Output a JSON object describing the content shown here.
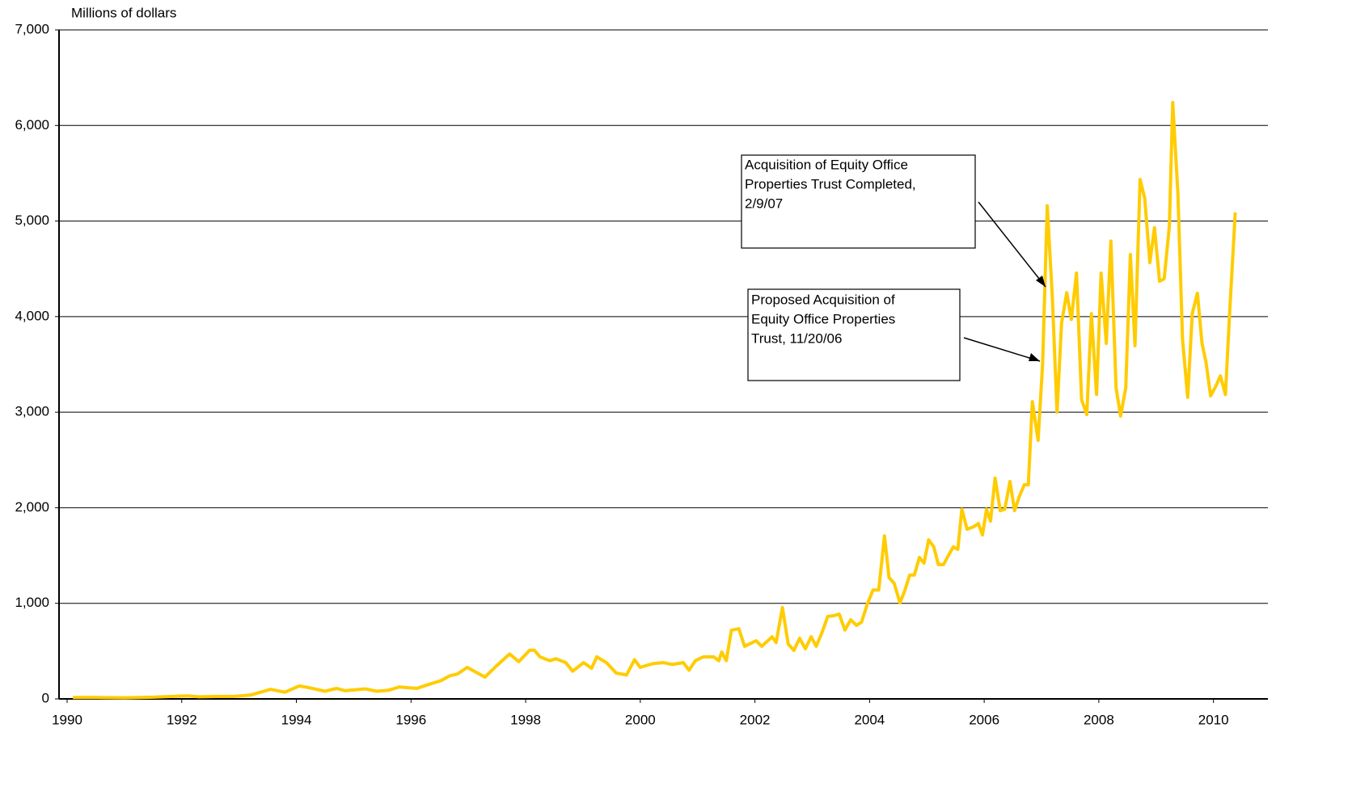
{
  "chart_data": {
    "type": "line",
    "y_axis_label": "Millions of dollars",
    "annotations": [
      {
        "lines": [
          "Acquisition of Equity Office",
          "Properties Trust Completed,",
          "2/9/07"
        ]
      },
      {
        "lines": [
          "Proposed Acquisition of",
          "Equity Office Properties",
          "Trust, 11/20/06"
        ]
      }
    ],
    "color": "#FFCC00",
    "grid": true,
    "xlim": [
      1990,
      2010.95
    ],
    "xticks": [
      1990,
      1992,
      1994,
      1996,
      1998,
      2000,
      2002,
      2004,
      2006,
      2008,
      2010
    ],
    "ylim": [
      0,
      7000
    ],
    "yticks": [
      0,
      {
        "value": 1000,
        "label": "1,000"
      },
      {
        "value": 2000,
        "label": "2,000"
      },
      {
        "value": 3000,
        "label": "3,000"
      },
      {
        "value": 4000,
        "label": "4,000"
      },
      {
        "value": 5000,
        "label": "5,000"
      },
      {
        "value": 6000,
        "label": "6,000"
      },
      {
        "value": 7000,
        "label": "7,000"
      }
    ],
    "x": [
      1990.1,
      1990.5,
      1991,
      1991.5,
      1991.9,
      1992.1,
      1992.3,
      1992.6,
      1992.9,
      1993.2,
      1993.55,
      1993.8,
      1994.05,
      1994.2,
      1994.5,
      1994.7,
      1994.85,
      1995.2,
      1995.4,
      1995.6,
      1995.8,
      1996.1,
      1996.3,
      1996.52,
      1996.67,
      1996.81,
      1996.98,
      1997.29,
      1997.5,
      1997.72,
      1997.88,
      1998.07,
      1998.15,
      1998.25,
      1998.42,
      1998.53,
      1998.7,
      1998.82,
      1999.01,
      1999.15,
      1999.24,
      1999.41,
      1999.58,
      1999.76,
      1999.9,
      2000.0,
      2000.11,
      2000.23,
      2000.4,
      2000.56,
      2000.75,
      2000.85,
      2000.96,
      2001.1,
      2001.28,
      2001.37,
      2001.42,
      2001.5,
      2001.59,
      2001.72,
      2001.82,
      2002.02,
      2002.12,
      2002.3,
      2002.37,
      2002.48,
      2002.58,
      2002.68,
      2002.78,
      2002.88,
      2002.98,
      2003.07,
      2003.17,
      2003.27,
      2003.37,
      2003.47,
      2003.57,
      2003.67,
      2003.77,
      2003.86,
      2003.96,
      2004.06,
      2004.16,
      2004.26,
      2004.34,
      2004.43,
      2004.53,
      2004.61,
      2004.7,
      2004.78,
      2004.87,
      2004.95,
      2005.03,
      2005.12,
      2005.2,
      2005.29,
      2005.37,
      2005.46,
      2005.54,
      2005.61,
      2005.7,
      2005.81,
      2005.9,
      2005.97,
      2006.04,
      2006.11,
      2006.19,
      2006.28,
      2006.36,
      2006.45,
      2006.53,
      2006.61,
      2006.7,
      2006.77,
      2006.84,
      2006.94,
      2007.02,
      2007.1,
      2007.19,
      2007.27,
      2007.35,
      2007.44,
      2007.52,
      2007.61,
      2007.7,
      2007.79,
      2007.87,
      2007.96,
      2008.04,
      2008.13,
      2008.21,
      2008.3,
      2008.38,
      2008.47,
      2008.55,
      2008.63,
      2008.72,
      2008.8,
      2008.89,
      2008.97,
      2009.06,
      2009.14,
      2009.23,
      2009.29,
      2009.38,
      2009.46,
      2009.55,
      2009.63,
      2009.72,
      2009.8,
      2009.87,
      2009.95,
      2010.04,
      2010.12,
      2010.21,
      2010.28,
      2010.38
    ],
    "values": [
      15,
      14,
      12,
      18,
      28,
      32,
      22,
      25,
      25,
      40,
      100,
      70,
      135,
      120,
      80,
      110,
      85,
      105,
      80,
      90,
      125,
      110,
      150,
      190,
      240,
      260,
      330,
      228,
      350,
      470,
      390,
      510,
      510,
      440,
      400,
      420,
      380,
      290,
      380,
      320,
      440,
      380,
      270,
      250,
      410,
      330,
      350,
      370,
      380,
      360,
      380,
      300,
      400,
      440,
      440,
      400,
      490,
      400,
      718,
      735,
      550,
      608,
      550,
      650,
      590,
      955,
      575,
      507,
      634,
      524,
      650,
      550,
      693,
      862,
      870,
      888,
      720,
      828,
      770,
      803,
      990,
      1140,
      1140,
      1705,
      1268,
      1210,
      1005,
      1125,
      1295,
      1295,
      1480,
      1420,
      1665,
      1590,
      1405,
      1405,
      1495,
      1590,
      1565,
      1985,
      1775,
      1800,
      1835,
      1715,
      1985,
      1860,
      2310,
      1970,
      1985,
      2275,
      1970,
      2115,
      2240,
      2240,
      3110,
      2705,
      3510,
      5160,
      4185,
      3000,
      3930,
      4250,
      3970,
      4455,
      3130,
      2975,
      4030,
      3185,
      4455,
      3720,
      4790,
      3255,
      2960,
      3255,
      4650,
      3695,
      5435,
      5240,
      4565,
      4930,
      4370,
      4395,
      4945,
      6240,
      5285,
      3760,
      3155,
      4030,
      4245,
      3720,
      3525,
      3170,
      3270,
      3380,
      3185,
      4015,
      5090
    ]
  }
}
